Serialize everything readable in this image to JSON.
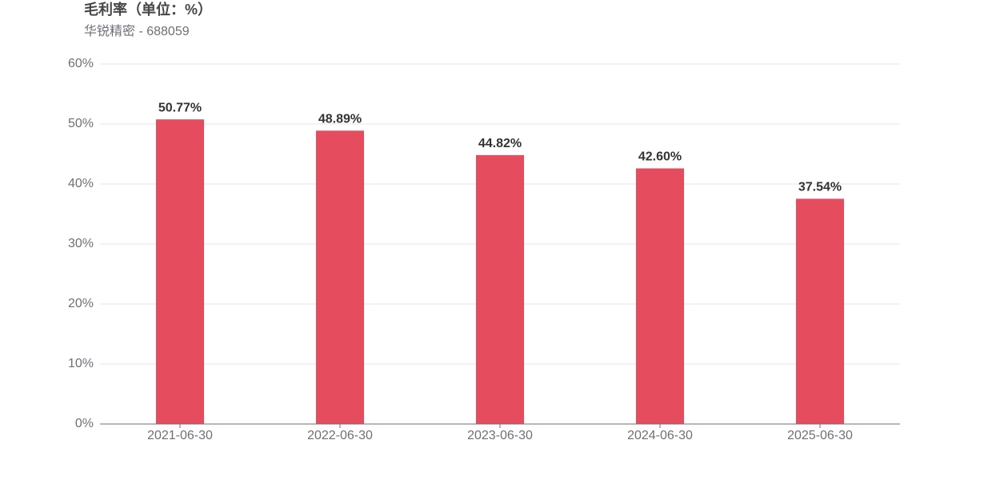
{
  "chart_data": {
    "type": "bar",
    "title": "毛利率（单位：%）",
    "subtitle": "华锐精密 - 688059",
    "categories": [
      "2021-06-30",
      "2022-06-30",
      "2023-06-30",
      "2024-06-30",
      "2025-06-30"
    ],
    "values": [
      50.77,
      48.89,
      44.82,
      42.6,
      37.54
    ],
    "value_labels": [
      "50.77%",
      "48.89%",
      "44.82%",
      "42.60%",
      "37.54%"
    ],
    "color": "#e54c5e",
    "ylim": [
      0,
      60
    ],
    "yticks": [
      {
        "value": 0,
        "label": "0%"
      },
      {
        "value": 10,
        "label": "10%"
      },
      {
        "value": 20,
        "label": "20%"
      },
      {
        "value": 30,
        "label": "30%"
      },
      {
        "value": 40,
        "label": "40%"
      },
      {
        "value": 50,
        "label": "50%"
      },
      {
        "value": 60,
        "label": "60%"
      }
    ],
    "grid": true
  }
}
